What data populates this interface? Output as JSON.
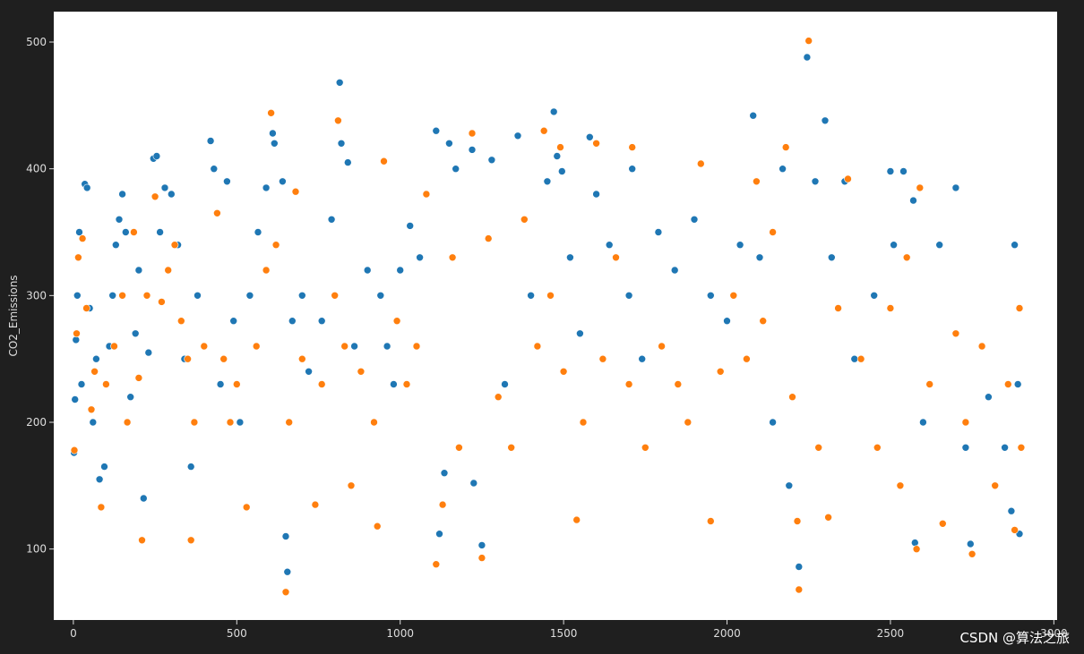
{
  "chart_data": {
    "type": "scatter",
    "title": "",
    "xlabel": "",
    "ylabel": "CO2_Emissions",
    "xlim": [
      -60,
      3010
    ],
    "ylim": [
      44,
      524
    ],
    "x_ticks": [
      0,
      500,
      1000,
      1500,
      2000,
      2500,
      3000
    ],
    "y_ticks": [
      100,
      200,
      300,
      400,
      500
    ],
    "grid": false,
    "series": [
      {
        "color": "#1f77b4",
        "points": [
          [
            2,
            176
          ],
          [
            5,
            218
          ],
          [
            8,
            265
          ],
          [
            12,
            300
          ],
          [
            18,
            350
          ],
          [
            25,
            230
          ],
          [
            35,
            388
          ],
          [
            42,
            385
          ],
          [
            50,
            290
          ],
          [
            60,
            200
          ],
          [
            70,
            250
          ],
          [
            80,
            155
          ],
          [
            95,
            165
          ],
          [
            110,
            260
          ],
          [
            120,
            300
          ],
          [
            130,
            340
          ],
          [
            140,
            360
          ],
          [
            150,
            380
          ],
          [
            160,
            350
          ],
          [
            175,
            220
          ],
          [
            190,
            270
          ],
          [
            200,
            320
          ],
          [
            215,
            140
          ],
          [
            230,
            255
          ],
          [
            245,
            408
          ],
          [
            255,
            410
          ],
          [
            265,
            350
          ],
          [
            280,
            385
          ],
          [
            300,
            380
          ],
          [
            320,
            340
          ],
          [
            340,
            250
          ],
          [
            360,
            165
          ],
          [
            380,
            300
          ],
          [
            420,
            422
          ],
          [
            430,
            400
          ],
          [
            450,
            230
          ],
          [
            470,
            390
          ],
          [
            490,
            280
          ],
          [
            510,
            200
          ],
          [
            540,
            300
          ],
          [
            565,
            350
          ],
          [
            590,
            385
          ],
          [
            610,
            428
          ],
          [
            615,
            420
          ],
          [
            640,
            390
          ],
          [
            650,
            110
          ],
          [
            655,
            82
          ],
          [
            670,
            280
          ],
          [
            700,
            300
          ],
          [
            720,
            240
          ],
          [
            760,
            280
          ],
          [
            790,
            360
          ],
          [
            815,
            468
          ],
          [
            820,
            420
          ],
          [
            840,
            405
          ],
          [
            860,
            260
          ],
          [
            900,
            320
          ],
          [
            940,
            300
          ],
          [
            960,
            260
          ],
          [
            980,
            230
          ],
          [
            1000,
            320
          ],
          [
            1030,
            355
          ],
          [
            1060,
            330
          ],
          [
            1110,
            430
          ],
          [
            1120,
            112
          ],
          [
            1135,
            160
          ],
          [
            1150,
            420
          ],
          [
            1170,
            400
          ],
          [
            1220,
            415
          ],
          [
            1225,
            152
          ],
          [
            1250,
            103
          ],
          [
            1280,
            407
          ],
          [
            1320,
            230
          ],
          [
            1360,
            426
          ],
          [
            1400,
            300
          ],
          [
            1450,
            390
          ],
          [
            1470,
            445
          ],
          [
            1480,
            410
          ],
          [
            1495,
            398
          ],
          [
            1520,
            330
          ],
          [
            1550,
            270
          ],
          [
            1580,
            425
          ],
          [
            1600,
            380
          ],
          [
            1640,
            340
          ],
          [
            1700,
            300
          ],
          [
            1710,
            400
          ],
          [
            1740,
            250
          ],
          [
            1790,
            350
          ],
          [
            1840,
            320
          ],
          [
            1900,
            360
          ],
          [
            1950,
            300
          ],
          [
            2000,
            280
          ],
          [
            2040,
            340
          ],
          [
            2080,
            442
          ],
          [
            2100,
            330
          ],
          [
            2140,
            200
          ],
          [
            2170,
            400
          ],
          [
            2190,
            150
          ],
          [
            2220,
            86
          ],
          [
            2245,
            488
          ],
          [
            2270,
            390
          ],
          [
            2300,
            438
          ],
          [
            2320,
            330
          ],
          [
            2360,
            390
          ],
          [
            2390,
            250
          ],
          [
            2450,
            300
          ],
          [
            2500,
            398
          ],
          [
            2510,
            340
          ],
          [
            2540,
            398
          ],
          [
            2570,
            375
          ],
          [
            2575,
            105
          ],
          [
            2600,
            200
          ],
          [
            2650,
            340
          ],
          [
            2700,
            385
          ],
          [
            2730,
            180
          ],
          [
            2745,
            104
          ],
          [
            2800,
            220
          ],
          [
            2850,
            180
          ],
          [
            2870,
            130
          ],
          [
            2880,
            340
          ],
          [
            2890,
            230
          ],
          [
            2895,
            112
          ]
        ]
      },
      {
        "color": "#ff7f0e",
        "points": [
          [
            3,
            178
          ],
          [
            10,
            270
          ],
          [
            15,
            330
          ],
          [
            28,
            345
          ],
          [
            40,
            290
          ],
          [
            55,
            210
          ],
          [
            65,
            240
          ],
          [
            85,
            133
          ],
          [
            100,
            230
          ],
          [
            125,
            260
          ],
          [
            150,
            300
          ],
          [
            165,
            200
          ],
          [
            185,
            350
          ],
          [
            200,
            235
          ],
          [
            210,
            107
          ],
          [
            225,
            300
          ],
          [
            250,
            378
          ],
          [
            270,
            295
          ],
          [
            290,
            320
          ],
          [
            310,
            340
          ],
          [
            330,
            280
          ],
          [
            350,
            250
          ],
          [
            360,
            107
          ],
          [
            370,
            200
          ],
          [
            400,
            260
          ],
          [
            440,
            365
          ],
          [
            460,
            250
          ],
          [
            480,
            200
          ],
          [
            500,
            230
          ],
          [
            530,
            133
          ],
          [
            560,
            260
          ],
          [
            590,
            320
          ],
          [
            605,
            444
          ],
          [
            620,
            340
          ],
          [
            650,
            66
          ],
          [
            660,
            200
          ],
          [
            680,
            382
          ],
          [
            700,
            250
          ],
          [
            740,
            135
          ],
          [
            760,
            230
          ],
          [
            800,
            300
          ],
          [
            810,
            438
          ],
          [
            830,
            260
          ],
          [
            850,
            150
          ],
          [
            880,
            240
          ],
          [
            920,
            200
          ],
          [
            950,
            406
          ],
          [
            930,
            118
          ],
          [
            990,
            280
          ],
          [
            1020,
            230
          ],
          [
            1050,
            260
          ],
          [
            1080,
            380
          ],
          [
            1110,
            88
          ],
          [
            1130,
            135
          ],
          [
            1160,
            330
          ],
          [
            1180,
            180
          ],
          [
            1220,
            428
          ],
          [
            1250,
            93
          ],
          [
            1270,
            345
          ],
          [
            1300,
            220
          ],
          [
            1340,
            180
          ],
          [
            1380,
            360
          ],
          [
            1420,
            260
          ],
          [
            1440,
            430
          ],
          [
            1460,
            300
          ],
          [
            1490,
            417
          ],
          [
            1500,
            240
          ],
          [
            1540,
            123
          ],
          [
            1560,
            200
          ],
          [
            1600,
            420
          ],
          [
            1620,
            250
          ],
          [
            1660,
            330
          ],
          [
            1700,
            230
          ],
          [
            1710,
            417
          ],
          [
            1750,
            180
          ],
          [
            1800,
            260
          ],
          [
            1850,
            230
          ],
          [
            1880,
            200
          ],
          [
            1920,
            404
          ],
          [
            1950,
            122
          ],
          [
            1980,
            240
          ],
          [
            2020,
            300
          ],
          [
            2060,
            250
          ],
          [
            2090,
            390
          ],
          [
            2110,
            280
          ],
          [
            2140,
            350
          ],
          [
            2180,
            417
          ],
          [
            2200,
            220
          ],
          [
            2215,
            122
          ],
          [
            2220,
            68
          ],
          [
            2250,
            501
          ],
          [
            2280,
            180
          ],
          [
            2310,
            125
          ],
          [
            2340,
            290
          ],
          [
            2370,
            392
          ],
          [
            2410,
            250
          ],
          [
            2460,
            180
          ],
          [
            2500,
            290
          ],
          [
            2530,
            150
          ],
          [
            2550,
            330
          ],
          [
            2580,
            100
          ],
          [
            2590,
            385
          ],
          [
            2620,
            230
          ],
          [
            2660,
            120
          ],
          [
            2700,
            270
          ],
          [
            2730,
            200
          ],
          [
            2750,
            96
          ],
          [
            2780,
            260
          ],
          [
            2820,
            150
          ],
          [
            2860,
            230
          ],
          [
            2880,
            115
          ],
          [
            2895,
            290
          ],
          [
            2900,
            180
          ]
        ]
      }
    ]
  },
  "watermark": "CSDN @算法之旅"
}
